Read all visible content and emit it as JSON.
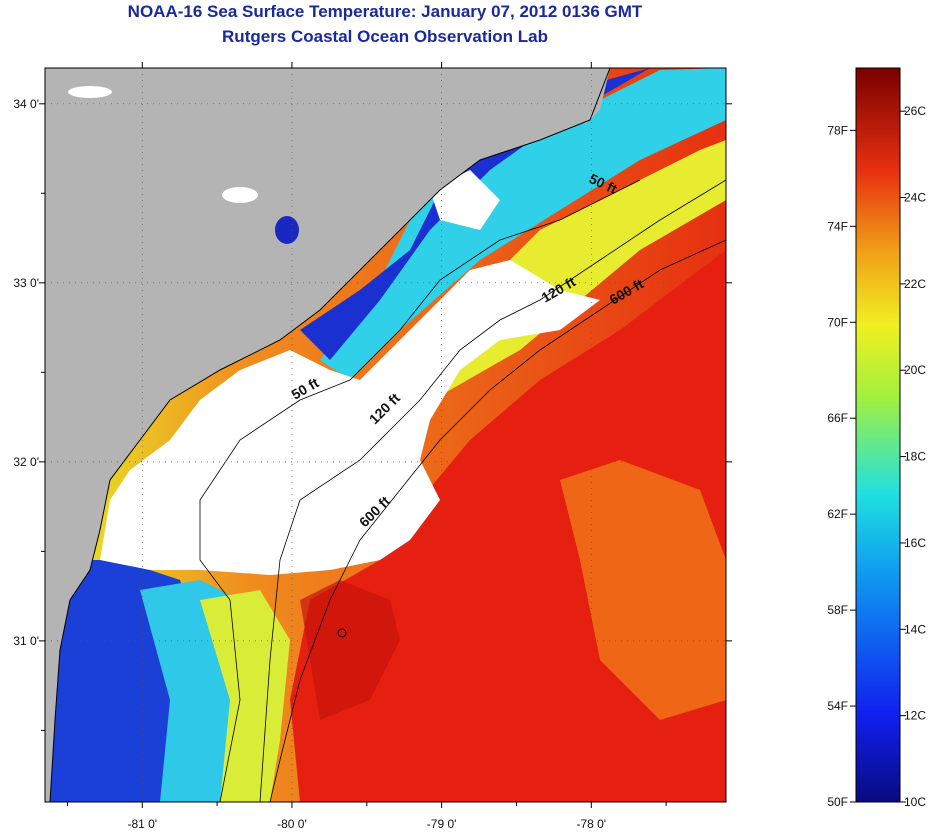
{
  "header": {
    "title": "NOAA-16 Sea Surface Temperature:  January 07, 2012 0136 GMT",
    "subtitle": "Rutgers Coastal Ocean Observation Lab"
  },
  "map": {
    "lon_range": [
      -81.65,
      -77.1
    ],
    "lat_range": [
      30.1,
      34.2
    ],
    "lon_ticks": [
      {
        "value": -81,
        "label": "-81 0'"
      },
      {
        "value": -80,
        "label": "-80 0'"
      },
      {
        "value": -79,
        "label": "-79 0'"
      },
      {
        "value": -78,
        "label": "-78 0'"
      }
    ],
    "lat_ticks": [
      {
        "value": 34,
        "label": "34 0'"
      },
      {
        "value": 33,
        "label": "33 0'"
      },
      {
        "value": 32,
        "label": "32 0'"
      },
      {
        "value": 31,
        "label": "31 0'"
      }
    ],
    "contour_labels": [
      {
        "text": "50 ft"
      },
      {
        "text": "120 ft"
      },
      {
        "text": "600 ft"
      },
      {
        "text": "50 ft"
      },
      {
        "text": "120 ft"
      },
      {
        "text": "600 ft"
      }
    ],
    "colors": {
      "land": "#b4b4b4",
      "cloud": "#ffffff",
      "cold": "#1228c8",
      "cool": "#1ec8f0",
      "mid": "#e6f028",
      "warm": "#f08c1e",
      "hot": "#e61e0a",
      "darkred": "#b40a0a"
    }
  },
  "colorbar": {
    "fahrenheit_labels": [
      "78F",
      "74F",
      "70F",
      "66F",
      "62F",
      "58F",
      "54F",
      "50F"
    ],
    "celsius_labels": [
      "26C",
      "24C",
      "22C",
      "20C",
      "18C",
      "16C",
      "14C",
      "12C",
      "10C"
    ]
  }
}
